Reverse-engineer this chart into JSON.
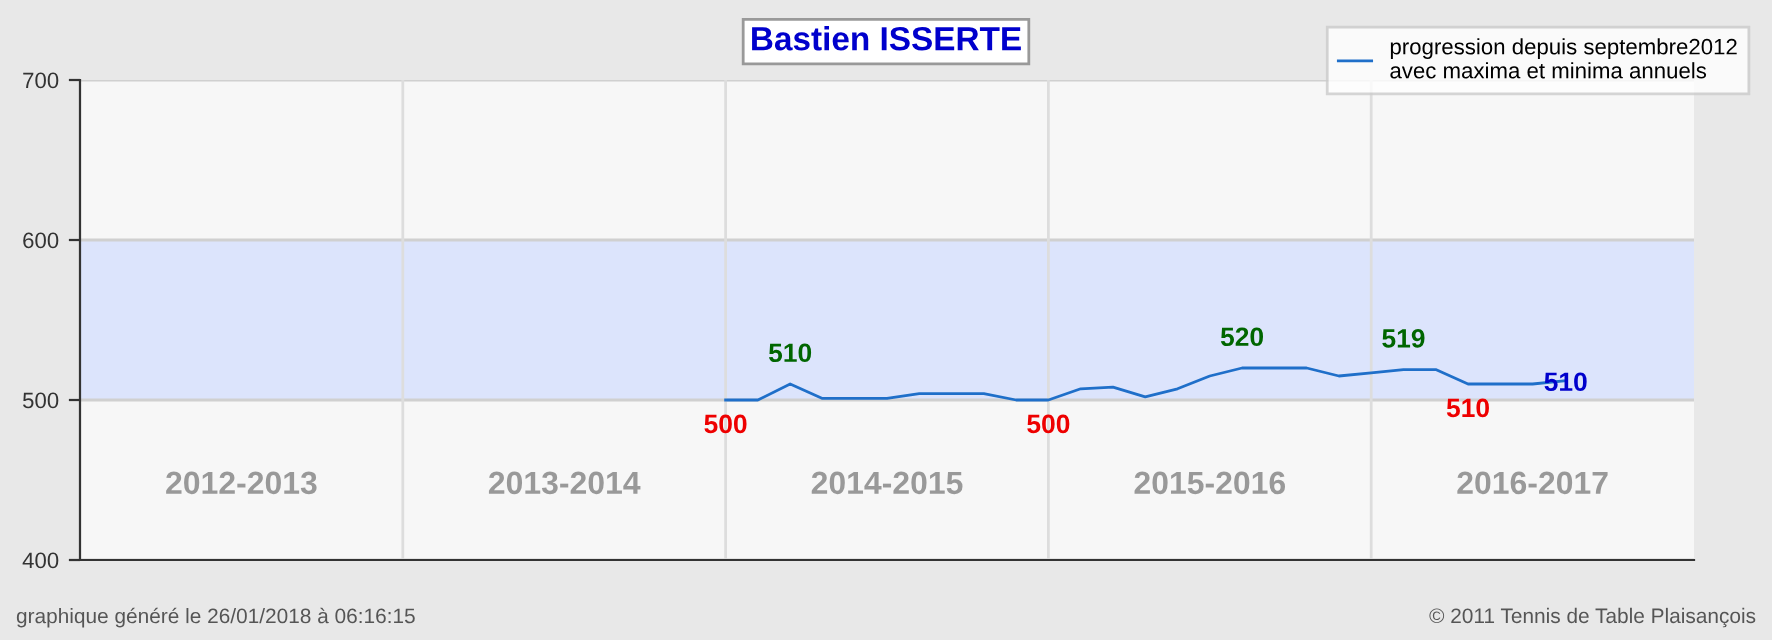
{
  "chart_data": {
    "type": "line",
    "title": "Bastien ISSERTE",
    "categories": [
      null,
      null,
      null,
      null,
      null,
      null,
      null,
      null,
      null,
      null,
      null,
      null,
      null,
      null,
      null,
      null,
      null,
      null,
      null,
      null,
      null,
      null,
      null,
      null,
      null,
      null,
      null,
      null,
      null,
      null,
      null,
      null,
      null,
      null,
      null,
      null,
      null,
      null,
      null,
      null,
      null,
      null,
      null,
      null,
      null,
      null,
      null,
      null,
      null,
      null
    ],
    "series": [
      {
        "name": "progression depuis septembre2012\navec maxima et minima annuels",
        "color": "#1f6fc9",
        "values": [
          null,
          null,
          null,
          null,
          null,
          null,
          null,
          null,
          null,
          null,
          null,
          null,
          null,
          null,
          null,
          null,
          null,
          null,
          null,
          null,
          500,
          500,
          510,
          501,
          501,
          501,
          504,
          504,
          504,
          500,
          500,
          507,
          508,
          502,
          507,
          515,
          520,
          520,
          520,
          515,
          517,
          519,
          519,
          510,
          510,
          510,
          512,
          null,
          null,
          null
        ],
        "value_labels": [
          null,
          null,
          null,
          null,
          null,
          null,
          null,
          null,
          null,
          null,
          null,
          null,
          null,
          null,
          null,
          null,
          null,
          null,
          null,
          null,
          "500",
          null,
          "510",
          null,
          null,
          null,
          null,
          null,
          null,
          null,
          "500",
          null,
          null,
          null,
          null,
          null,
          "520",
          null,
          null,
          null,
          null,
          "519",
          null,
          "510",
          null,
          "510",
          null,
          null,
          null,
          null
        ]
      }
    ],
    "ylim": [
      400,
      700
    ],
    "yticks": [
      400,
      500,
      600,
      700
    ],
    "tick_labels": "y",
    "bands": [
      {
        "axis": "y",
        "from": 500,
        "to": 600,
        "color": "#dce4fc"
      }
    ],
    "annotations": [
      "2012-2013",
      "2013-2014",
      "2014-2015",
      "2015-2016",
      "2016-2017",
      "graphique généré le 26/01/2018 à 06:16:15",
      "© 2011 Tennis de Table Plaisançois"
    ],
    "grid": true,
    "legend": "top right",
    "line_style": "solid",
    "marker": "none"
  }
}
